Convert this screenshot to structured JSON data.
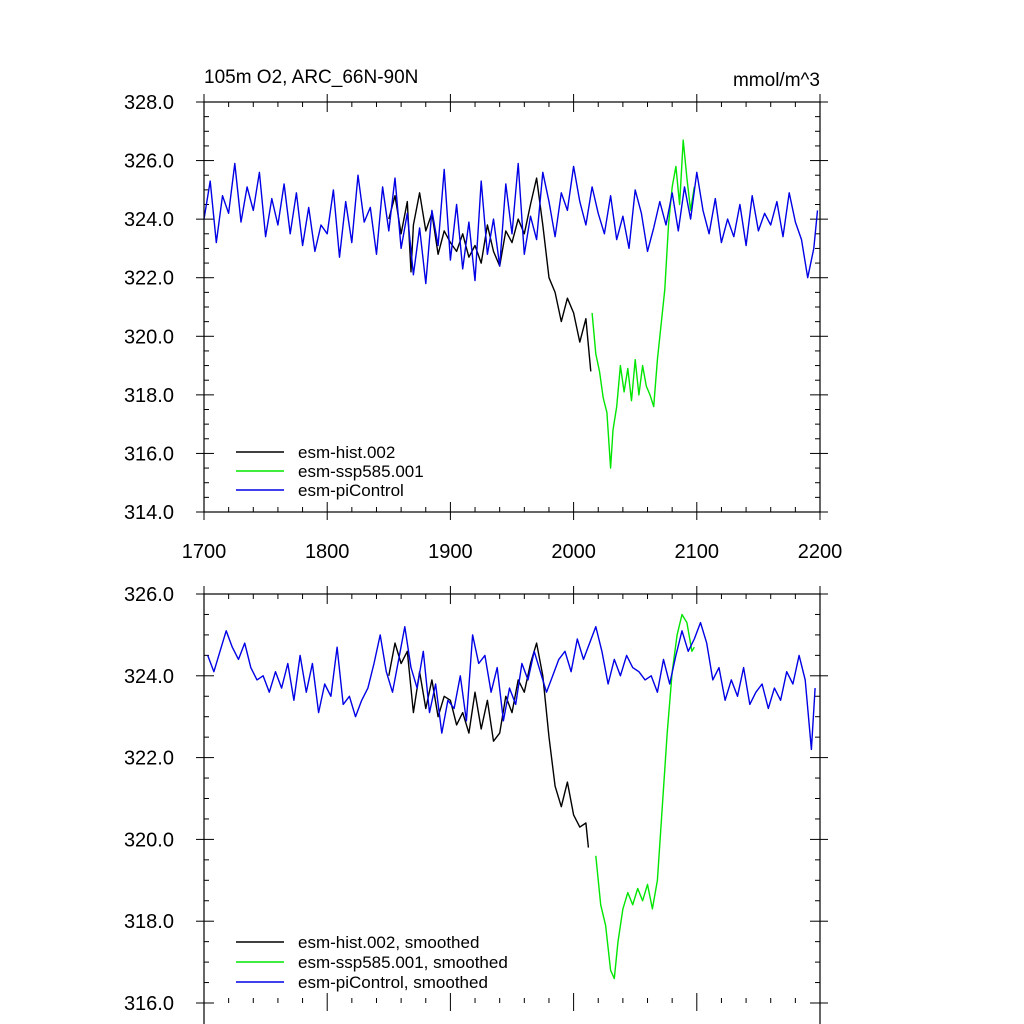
{
  "chart_data": [
    {
      "type": "line",
      "title": "105m O2, ARC_66N-90N",
      "units_label": "mmol/m^3",
      "xlim": [
        1700,
        2200
      ],
      "ylim": [
        314,
        328
      ],
      "x_ticks": [
        1700,
        1800,
        1900,
        2000,
        2100,
        2200
      ],
      "x_tick_labels": [
        "1700",
        "1800",
        "1900",
        "2000",
        "2100",
        "2200"
      ],
      "y_ticks": [
        314,
        316,
        318,
        320,
        322,
        324,
        326,
        328
      ],
      "y_tick_labels": [
        "314.0",
        "316.0",
        "318.0",
        "320.0",
        "322.0",
        "324.0",
        "326.0",
        "328.0"
      ],
      "legend_position": "lower-left",
      "series": [
        {
          "name": "esm-hist.002",
          "color": "#000000",
          "x": [
            1850,
            1855,
            1860,
            1865,
            1868,
            1870,
            1875,
            1880,
            1885,
            1890,
            1895,
            1900,
            1905,
            1910,
            1915,
            1920,
            1925,
            1930,
            1935,
            1940,
            1945,
            1950,
            1955,
            1960,
            1965,
            1970,
            1975,
            1980,
            1985,
            1990,
            1995,
            2000,
            2005,
            2010,
            2014
          ],
          "y": [
            324.0,
            324.8,
            323.5,
            324.6,
            322.2,
            323.8,
            324.9,
            323.6,
            324.2,
            322.8,
            323.6,
            323.2,
            322.9,
            323.5,
            322.7,
            323.1,
            322.5,
            323.8,
            322.9,
            322.4,
            323.6,
            323.2,
            324.0,
            323.5,
            324.5,
            325.4,
            323.8,
            322.0,
            321.5,
            320.5,
            321.3,
            320.8,
            319.8,
            320.6,
            318.8
          ]
        },
        {
          "name": "esm-ssp585.001",
          "color": "#00e600",
          "x": [
            2015,
            2018,
            2021,
            2024,
            2027,
            2030,
            2032,
            2035,
            2038,
            2041,
            2044,
            2047,
            2050,
            2053,
            2056,
            2059,
            2062,
            2065,
            2068,
            2071,
            2074,
            2077,
            2080,
            2083,
            2086,
            2089,
            2092,
            2095,
            2098
          ],
          "y": [
            320.8,
            319.4,
            318.8,
            317.9,
            317.4,
            315.5,
            316.8,
            317.6,
            319.0,
            318.1,
            318.9,
            317.8,
            319.2,
            318.0,
            319.0,
            318.3,
            318.0,
            317.6,
            319.2,
            320.4,
            321.6,
            323.8,
            325.1,
            325.8,
            324.5,
            326.7,
            325.4,
            324.3,
            325.1
          ]
        },
        {
          "name": "esm-piControl",
          "color": "#0000e6",
          "x": [
            1700,
            1705,
            1710,
            1715,
            1720,
            1725,
            1730,
            1735,
            1740,
            1745,
            1750,
            1755,
            1760,
            1765,
            1770,
            1775,
            1780,
            1785,
            1790,
            1795,
            1800,
            1805,
            1810,
            1815,
            1820,
            1825,
            1830,
            1835,
            1840,
            1845,
            1850,
            1855,
            1860,
            1865,
            1870,
            1875,
            1880,
            1885,
            1890,
            1895,
            1900,
            1905,
            1910,
            1915,
            1920,
            1925,
            1930,
            1935,
            1940,
            1945,
            1950,
            1955,
            1960,
            1965,
            1970,
            1975,
            1980,
            1985,
            1990,
            1995,
            2000,
            2005,
            2010,
            2015,
            2020,
            2025,
            2030,
            2035,
            2040,
            2045,
            2050,
            2055,
            2060,
            2065,
            2070,
            2075,
            2080,
            2085,
            2090,
            2095,
            2100,
            2105,
            2110,
            2115,
            2120,
            2125,
            2130,
            2135,
            2140,
            2145,
            2150,
            2155,
            2160,
            2165,
            2170,
            2175,
            2180,
            2185,
            2190,
            2195,
            2198
          ],
          "y": [
            324.0,
            325.3,
            323.2,
            324.8,
            324.2,
            325.9,
            323.9,
            325.1,
            324.3,
            325.6,
            323.4,
            324.7,
            323.8,
            325.2,
            323.5,
            324.9,
            323.1,
            324.4,
            322.9,
            323.8,
            323.5,
            325.0,
            322.7,
            324.6,
            323.2,
            325.5,
            323.9,
            324.4,
            322.8,
            325.1,
            323.6,
            325.4,
            323.0,
            324.2,
            322.1,
            323.7,
            321.8,
            324.3,
            323.1,
            325.7,
            322.6,
            324.5,
            322.3,
            323.9,
            321.9,
            325.3,
            322.8,
            324.0,
            322.4,
            325.2,
            323.5,
            325.9,
            322.8,
            324.1,
            323.3,
            325.6,
            324.6,
            323.4,
            324.9,
            324.3,
            325.8,
            324.6,
            323.8,
            325.1,
            324.2,
            323.5,
            324.8,
            323.3,
            324.1,
            323.0,
            325.0,
            324.2,
            322.9,
            323.7,
            324.6,
            323.8,
            324.9,
            323.6,
            325.1,
            324.0,
            325.6,
            324.3,
            323.5,
            324.7,
            323.2,
            324.0,
            323.4,
            324.5,
            323.1,
            324.8,
            323.6,
            324.2,
            323.8,
            324.6,
            323.4,
            324.9,
            323.9,
            323.3,
            322.0,
            323.0,
            324.3
          ]
        }
      ]
    },
    {
      "type": "line",
      "title": "",
      "xlim": [
        1700,
        2200
      ],
      "ylim": [
        316,
        326
      ],
      "y_ticks": [
        316,
        318,
        320,
        322,
        324,
        326
      ],
      "y_tick_labels": [
        "316.0",
        "318.0",
        "320.0",
        "322.0",
        "324.0",
        "326.0"
      ],
      "legend_position": "lower-left",
      "series": [
        {
          "name": "esm-hist.002, smoothed",
          "color": "#000000",
          "x": [
            1850,
            1855,
            1860,
            1865,
            1870,
            1875,
            1880,
            1885,
            1890,
            1895,
            1900,
            1905,
            1910,
            1915,
            1920,
            1925,
            1930,
            1935,
            1940,
            1945,
            1950,
            1955,
            1960,
            1965,
            1970,
            1975,
            1980,
            1985,
            1990,
            1995,
            2000,
            2005,
            2010,
            2012
          ],
          "y": [
            324.0,
            324.8,
            324.3,
            324.6,
            323.1,
            324.1,
            323.2,
            323.9,
            323.0,
            323.5,
            323.4,
            322.8,
            323.1,
            322.6,
            323.6,
            322.7,
            323.4,
            322.4,
            322.6,
            323.5,
            323.1,
            323.9,
            323.6,
            324.3,
            324.8,
            324.0,
            322.5,
            321.3,
            320.8,
            321.4,
            320.6,
            320.3,
            320.4,
            319.8
          ]
        },
        {
          "name": "esm-ssp585.001, smoothed",
          "color": "#00e600",
          "x": [
            2018,
            2022,
            2026,
            2030,
            2033,
            2036,
            2040,
            2044,
            2048,
            2052,
            2056,
            2060,
            2064,
            2068,
            2072,
            2076,
            2080,
            2084,
            2088,
            2092,
            2096,
            2098
          ],
          "y": [
            319.6,
            318.4,
            317.9,
            316.8,
            316.6,
            317.5,
            318.3,
            318.7,
            318.4,
            318.8,
            318.5,
            318.9,
            318.3,
            319.0,
            320.8,
            322.6,
            324.1,
            325.0,
            325.5,
            325.3,
            324.6,
            324.7
          ]
        },
        {
          "name": "esm-piControl, smoothed",
          "color": "#0000e6",
          "x": [
            1703,
            1708,
            1713,
            1718,
            1723,
            1728,
            1733,
            1738,
            1743,
            1748,
            1753,
            1758,
            1763,
            1768,
            1773,
            1778,
            1783,
            1788,
            1793,
            1798,
            1803,
            1808,
            1813,
            1818,
            1823,
            1828,
            1833,
            1838,
            1843,
            1848,
            1853,
            1858,
            1863,
            1868,
            1873,
            1878,
            1883,
            1888,
            1893,
            1898,
            1903,
            1908,
            1913,
            1918,
            1923,
            1928,
            1933,
            1938,
            1943,
            1948,
            1953,
            1958,
            1963,
            1968,
            1973,
            1978,
            1983,
            1988,
            1993,
            1998,
            2003,
            2008,
            2013,
            2018,
            2023,
            2028,
            2033,
            2038,
            2043,
            2048,
            2053,
            2058,
            2063,
            2068,
            2073,
            2078,
            2083,
            2088,
            2093,
            2098,
            2103,
            2108,
            2113,
            2118,
            2123,
            2128,
            2133,
            2138,
            2143,
            2148,
            2153,
            2158,
            2163,
            2168,
            2173,
            2178,
            2183,
            2188,
            2193,
            2196
          ],
          "y": [
            324.5,
            324.1,
            324.6,
            325.1,
            324.7,
            324.4,
            324.8,
            324.2,
            323.9,
            324.0,
            323.6,
            324.1,
            323.7,
            324.3,
            323.4,
            324.5,
            323.6,
            324.3,
            323.1,
            323.8,
            323.5,
            324.7,
            323.3,
            323.5,
            323.0,
            323.4,
            323.7,
            324.3,
            325.0,
            324.1,
            323.6,
            324.4,
            325.2,
            324.2,
            323.7,
            324.6,
            323.1,
            323.8,
            322.6,
            323.4,
            323.2,
            324.0,
            322.9,
            325.0,
            324.3,
            324.5,
            323.6,
            324.2,
            322.9,
            323.7,
            323.3,
            324.3,
            323.9,
            324.6,
            324.1,
            323.6,
            324.0,
            324.4,
            324.6,
            324.1,
            324.9,
            324.4,
            324.8,
            325.2,
            324.6,
            323.8,
            324.4,
            324.0,
            324.5,
            324.2,
            324.1,
            323.9,
            324.0,
            323.6,
            324.4,
            323.8,
            324.5,
            325.1,
            324.6,
            324.9,
            325.3,
            324.8,
            323.9,
            324.2,
            323.4,
            323.9,
            323.5,
            324.2,
            323.3,
            323.6,
            323.8,
            323.2,
            323.7,
            323.4,
            324.1,
            323.8,
            324.5,
            323.9,
            322.2,
            323.7
          ]
        }
      ]
    }
  ]
}
